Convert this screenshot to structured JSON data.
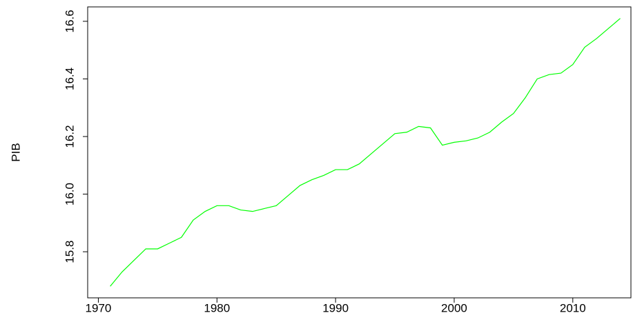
{
  "chart_data": {
    "type": "line",
    "ylabel": "PIB",
    "x": [
      1971,
      1972,
      1973,
      1974,
      1975,
      1976,
      1977,
      1978,
      1979,
      1980,
      1981,
      1982,
      1983,
      1984,
      1985,
      1986,
      1987,
      1988,
      1989,
      1990,
      1991,
      1992,
      1993,
      1994,
      1995,
      1996,
      1997,
      1998,
      1999,
      2000,
      2001,
      2002,
      2003,
      2004,
      2005,
      2006,
      2007,
      2008,
      2009,
      2010,
      2011,
      2012,
      2013,
      2014
    ],
    "series": [
      {
        "color": "#00ff00",
        "values": [
          15.68,
          15.73,
          15.77,
          15.81,
          15.81,
          15.83,
          15.85,
          15.91,
          15.94,
          15.96,
          15.96,
          15.945,
          15.94,
          15.95,
          15.96,
          15.995,
          16.03,
          16.05,
          16.065,
          16.085,
          16.085,
          16.105,
          16.14,
          16.175,
          16.21,
          16.215,
          16.235,
          16.23,
          16.17,
          16.18,
          16.185,
          16.195,
          16.215,
          16.25,
          16.28,
          16.335,
          16.4,
          16.415,
          16.42,
          16.45,
          16.51,
          16.54,
          16.575,
          16.61
        ]
      }
    ],
    "xlim": [
      1969.1,
      2014.9
    ],
    "ylim": [
      15.64,
      16.65
    ],
    "xticks": [
      1970,
      1980,
      1990,
      2000,
      2010
    ],
    "yticks": [
      15.8,
      {
        "value": 16,
        "label": "16.0"
      },
      16.2,
      16.4,
      16.6
    ]
  }
}
